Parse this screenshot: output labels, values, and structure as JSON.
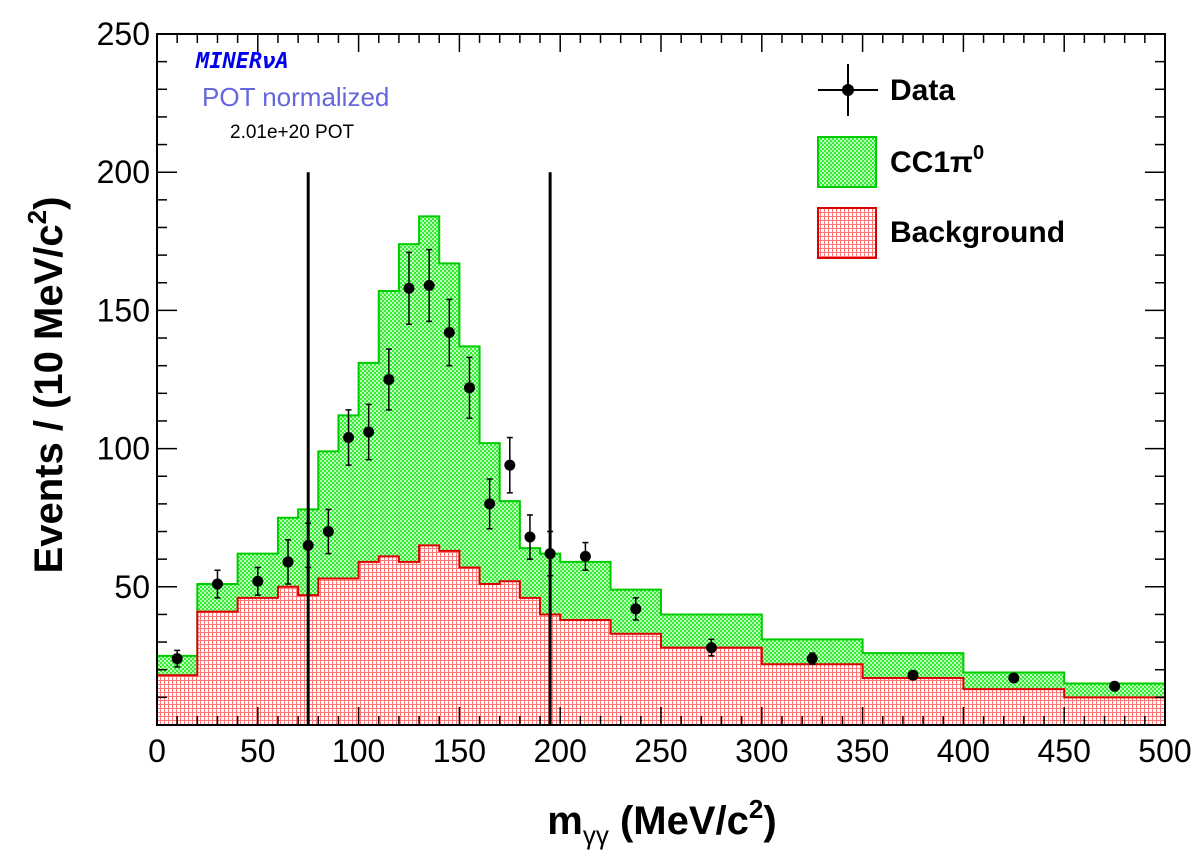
{
  "chart_data": {
    "type": "bar",
    "xlabel": {
      "main": "m",
      "sub": "γγ",
      "unit": " (MeV/c",
      "sup": "2",
      "close": ")"
    },
    "ylabel": {
      "main": "Events / (10 MeV/c",
      "sup": "2",
      "close": ")"
    },
    "xlim": [
      0,
      500
    ],
    "ylim": [
      0,
      250
    ],
    "x_ticks": [
      "0",
      "50",
      "100",
      "150",
      "200",
      "250",
      "300",
      "350",
      "400",
      "450",
      "500"
    ],
    "y_ticks": [
      "50",
      "100",
      "150",
      "200",
      "250"
    ],
    "grid": false,
    "legend_position": "top-right",
    "annotations": {
      "experiment": "MINERνA",
      "normalization": "POT normalized",
      "pot": "2.01e+20 POT"
    },
    "cut_lines_x": [
      75,
      195
    ],
    "bin_edges": [
      0,
      20,
      40,
      60,
      70,
      80,
      90,
      100,
      110,
      120,
      130,
      140,
      150,
      160,
      170,
      180,
      190,
      200,
      225,
      250,
      300,
      350,
      400,
      450,
      500
    ],
    "series": [
      {
        "name": "Background",
        "kind": "stacked-hist",
        "fill": "#ffffff",
        "hatch": "#ff6666",
        "line": "#dd0000",
        "values": [
          18,
          41,
          46,
          50,
          47,
          53,
          53,
          59,
          61,
          59,
          65,
          63,
          57,
          51,
          52,
          46,
          40,
          38,
          33,
          28,
          22,
          17,
          13,
          10
        ]
      },
      {
        "name": "CC1π⁰",
        "label_main": "CC1π",
        "label_sup": "0",
        "kind": "stacked-hist",
        "fill": "#33ee33",
        "hatch": "#bbffbb",
        "line": "#00cc00",
        "values": [
          7,
          10,
          16,
          25,
          31,
          46,
          59,
          72,
          96,
          115,
          119,
          104,
          80,
          51,
          29,
          18,
          22,
          21,
          16,
          12,
          9,
          9,
          6,
          5
        ]
      },
      {
        "name": "Data",
        "kind": "points",
        "color": "#000000",
        "x": [
          10,
          30,
          50,
          65,
          75,
          85,
          95,
          105,
          115,
          125,
          135,
          145,
          155,
          165,
          175,
          185,
          195,
          212.5,
          237.5,
          275,
          325,
          375,
          425,
          475
        ],
        "y": [
          24,
          51,
          52,
          59,
          65,
          70,
          104,
          106,
          125,
          158,
          159,
          142,
          122,
          80,
          94,
          68,
          62,
          61,
          42,
          28,
          24,
          18,
          17,
          14
        ],
        "err": [
          3,
          5,
          5,
          8,
          8,
          8,
          10,
          10,
          11,
          13,
          13,
          12,
          11,
          9,
          10,
          8,
          8,
          5,
          4,
          3,
          2,
          1,
          1,
          1
        ]
      }
    ]
  }
}
